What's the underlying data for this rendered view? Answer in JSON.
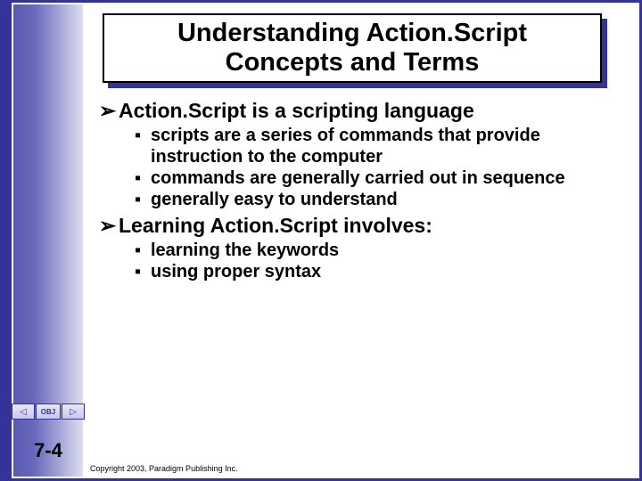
{
  "colors": {
    "frame": "#333399",
    "background": "#ffffff",
    "text": "#000000"
  },
  "title": {
    "line1": "Understanding Action.Script",
    "line2": "Concepts and Terms"
  },
  "bullets": {
    "lvl1_glyph": "➢",
    "lvl2_glyph": "▪",
    "items": [
      {
        "text": "Action.Script is a scripting language",
        "sub": [
          "scripts are a series of commands that provide instruction to the computer",
          "commands are generally carried out in sequence",
          "generally easy to understand"
        ]
      },
      {
        "text": "Learning Action.Script involves:",
        "sub": [
          "learning the keywords",
          "using proper syntax"
        ]
      }
    ]
  },
  "nav": {
    "center_label": "OBJ",
    "prev_glyph": "◁",
    "next_glyph": "▷"
  },
  "page_number": "7-4",
  "copyright": "Copyright 2003, Paradigm Publishing Inc."
}
